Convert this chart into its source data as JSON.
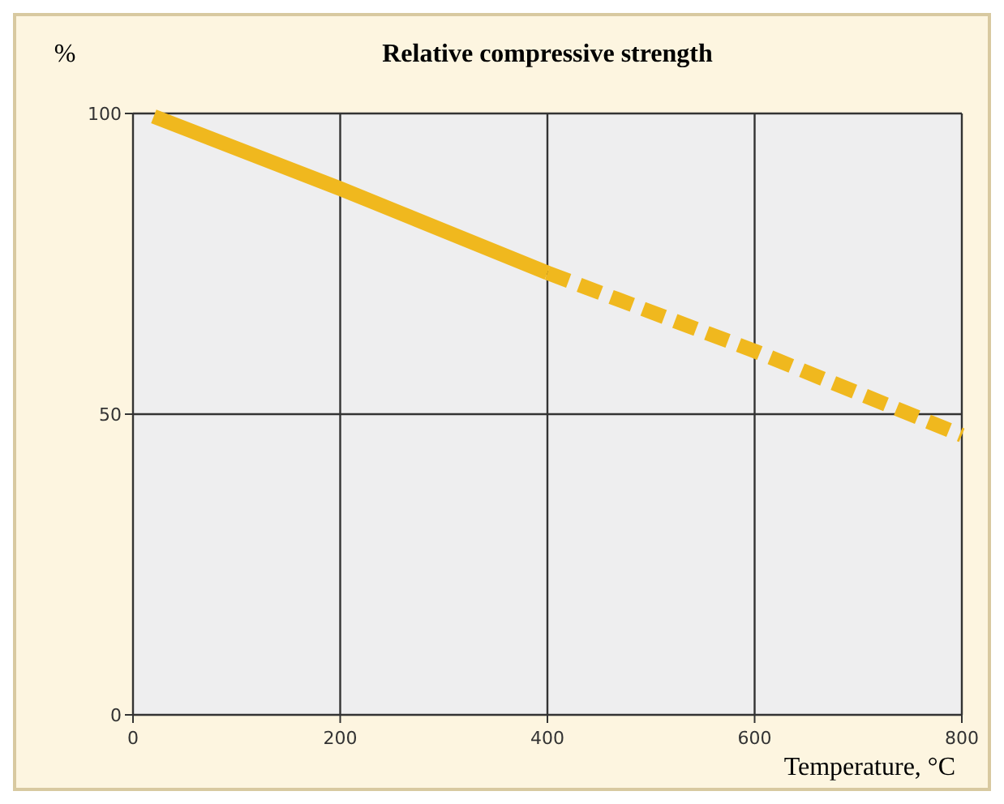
{
  "chart_data": {
    "type": "line",
    "title": "Relative compressive strength",
    "xlabel": "Temperature, °C",
    "ylabel": "%",
    "series": [
      {
        "x": [
          20,
          200,
          400
        ],
        "values": [
          99.5,
          87.5,
          73.5
        ],
        "color": "#f0b81e",
        "line_style": "solid"
      },
      {
        "x": [
          400,
          600,
          800
        ],
        "values": [
          73.5,
          60.5,
          46.5
        ],
        "color": "#f0b81e",
        "line_style": "dashed"
      }
    ],
    "xlim": [
      0,
      800
    ],
    "xticks": [
      0,
      200,
      400,
      600,
      800
    ],
    "ylim": [
      0,
      100
    ],
    "yticks": [
      0,
      50,
      100
    ],
    "grid": true,
    "marker": "none"
  }
}
